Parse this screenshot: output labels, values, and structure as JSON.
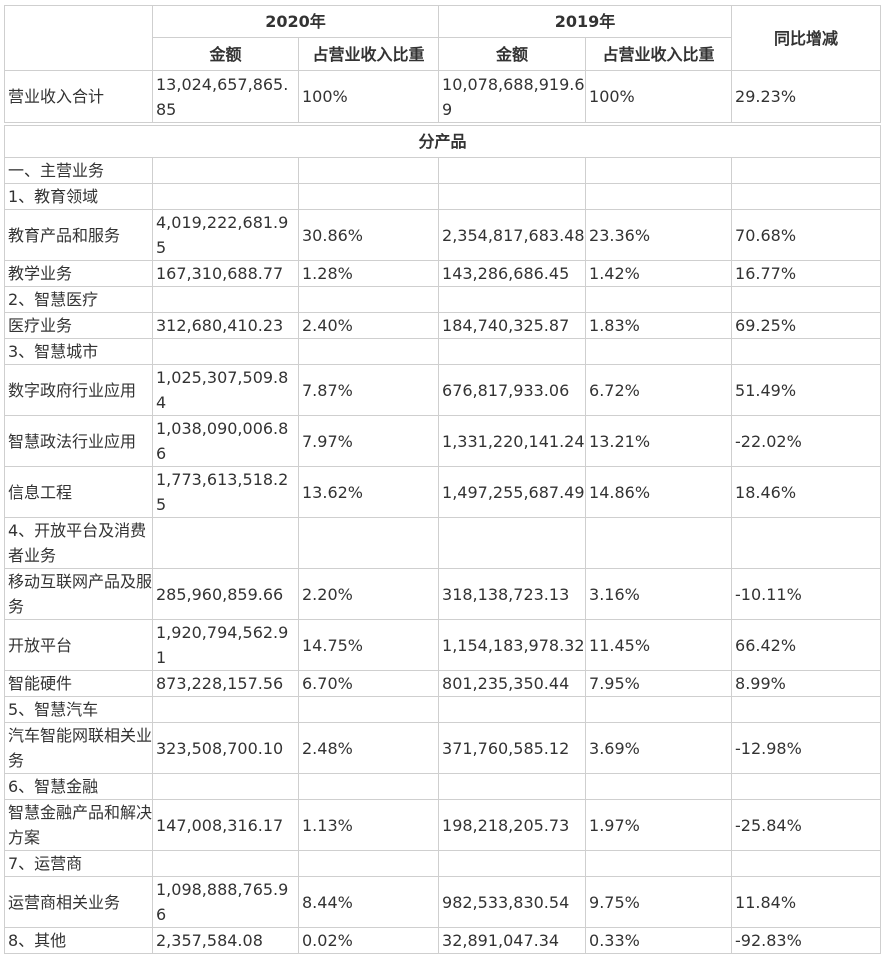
{
  "header": {
    "year_2020": "2020年",
    "year_2019": "2019年",
    "yoy": "同比增减",
    "amount_2020": "金额",
    "ratio_2020": "占营业收入比重",
    "amount_2019": "金额",
    "ratio_2019": "占营业收入比重"
  },
  "total": {
    "label": "营业收入合计",
    "amount_2020": "13,024,657,865.85",
    "ratio_2020": "100%",
    "amount_2019": "10,078,688,919.69",
    "ratio_2019": "100%",
    "yoy": "29.23%"
  },
  "section_title": "分产品",
  "rows": [
    {
      "label": "一、主营业务",
      "amount_2020": "",
      "ratio_2020": "",
      "amount_2019": "",
      "ratio_2019": "",
      "yoy": ""
    },
    {
      "label": "1、教育领域",
      "amount_2020": "",
      "ratio_2020": "",
      "amount_2019": "",
      "ratio_2019": "",
      "yoy": ""
    },
    {
      "label": "教育产品和服务",
      "amount_2020": "4,019,222,681.95",
      "ratio_2020": "30.86%",
      "amount_2019": "2,354,817,683.48",
      "ratio_2019": "23.36%",
      "yoy": "70.68%"
    },
    {
      "label": "教学业务",
      "amount_2020": "167,310,688.77",
      "ratio_2020": "1.28%",
      "amount_2019": "143,286,686.45",
      "ratio_2019": "1.42%",
      "yoy": "16.77%"
    },
    {
      "label": "2、智慧医疗",
      "amount_2020": "",
      "ratio_2020": "",
      "amount_2019": "",
      "ratio_2019": "",
      "yoy": ""
    },
    {
      "label": "医疗业务",
      "amount_2020": "312,680,410.23",
      "ratio_2020": "2.40%",
      "amount_2019": "184,740,325.87",
      "ratio_2019": "1.83%",
      "yoy": "69.25%"
    },
    {
      "label": "3、智慧城市",
      "amount_2020": "",
      "ratio_2020": "",
      "amount_2019": "",
      "ratio_2019": "",
      "yoy": ""
    },
    {
      "label": "数字政府行业应用",
      "amount_2020": "1,025,307,509.84",
      "ratio_2020": "7.87%",
      "amount_2019": "676,817,933.06",
      "ratio_2019": "6.72%",
      "yoy": "51.49%"
    },
    {
      "label": "智慧政法行业应用",
      "amount_2020": "1,038,090,006.86",
      "ratio_2020": "7.97%",
      "amount_2019": "1,331,220,141.24",
      "ratio_2019": "13.21%",
      "yoy": "-22.02%"
    },
    {
      "label": "信息工程",
      "amount_2020": "1,773,613,518.25",
      "ratio_2020": "13.62%",
      "amount_2019": "1,497,255,687.49",
      "ratio_2019": "14.86%",
      "yoy": "18.46%"
    },
    {
      "label": "4、开放平台及消费 者业务",
      "amount_2020": "",
      "ratio_2020": "",
      "amount_2019": "",
      "ratio_2019": "",
      "yoy": ""
    },
    {
      "label": "移动互联网产品及服务",
      "amount_2020": "285,960,859.66",
      "ratio_2020": "2.20%",
      "amount_2019": "318,138,723.13",
      "ratio_2019": "3.16%",
      "yoy": "-10.11%"
    },
    {
      "label": "开放平台",
      "amount_2020": "1,920,794,562.91",
      "ratio_2020": "14.75%",
      "amount_2019": "1,154,183,978.32",
      "ratio_2019": "11.45%",
      "yoy": "66.42%"
    },
    {
      "label": "智能硬件",
      "amount_2020": "873,228,157.56",
      "ratio_2020": "6.70%",
      "amount_2019": "801,235,350.44",
      "ratio_2019": "7.95%",
      "yoy": "8.99%"
    },
    {
      "label": "5、智慧汽车",
      "amount_2020": "",
      "ratio_2020": "",
      "amount_2019": "",
      "ratio_2019": "",
      "yoy": ""
    },
    {
      "label": "汽车智能网联相关业务",
      "amount_2020": "323,508,700.10",
      "ratio_2020": "2.48%",
      "amount_2019": "371,760,585.12",
      "ratio_2019": "3.69%",
      "yoy": "-12.98%"
    },
    {
      "label": "6、智慧金融",
      "amount_2020": "",
      "ratio_2020": "",
      "amount_2019": "",
      "ratio_2019": "",
      "yoy": ""
    },
    {
      "label": "智慧金融产品和解决方案",
      "amount_2020": "147,008,316.17",
      "ratio_2020": "1.13%",
      "amount_2019": "198,218,205.73",
      "ratio_2019": "1.97%",
      "yoy": "-25.84%"
    },
    {
      "label": "7、运营商",
      "amount_2020": "",
      "ratio_2020": "",
      "amount_2019": "",
      "ratio_2019": "",
      "yoy": ""
    },
    {
      "label": "运营商相关业务",
      "amount_2020": "1,098,888,765.96",
      "ratio_2020": "8.44%",
      "amount_2019": "982,533,830.54",
      "ratio_2019": "9.75%",
      "yoy": "11.84%"
    },
    {
      "label": "8、其他",
      "amount_2020": "2,357,584.08",
      "ratio_2020": "0.02%",
      "amount_2019": "32,891,047.34",
      "ratio_2019": "0.33%",
      "yoy": "-92.83%"
    }
  ]
}
